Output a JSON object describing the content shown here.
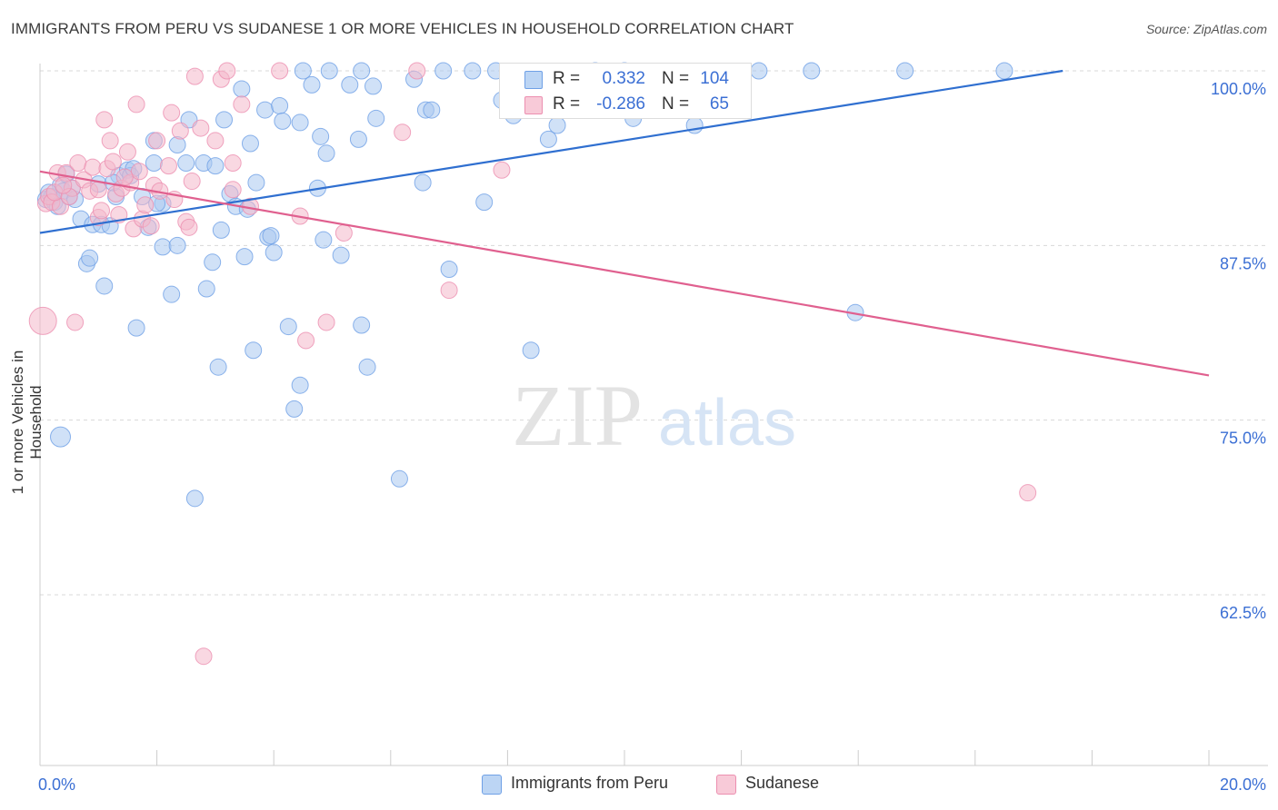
{
  "title": "IMMIGRANTS FROM PERU VS SUDANESE 1 OR MORE VEHICLES IN HOUSEHOLD CORRELATION CHART",
  "source": "Source: ZipAtlas.com",
  "watermark": {
    "zip": "ZIP",
    "atlas": "atlas"
  },
  "legend": {
    "r_label": "R =",
    "n_label": "N =",
    "rows": [
      {
        "r": "0.332",
        "n": "104",
        "color": "#a9c8f0"
      },
      {
        "r": "-0.286",
        "n": "65",
        "color": "#f4b8cb"
      }
    ]
  },
  "colors": {
    "peru": "#6fa0e6",
    "peru_fill": "#a9c8f0",
    "peru_line": "#2f6fd0",
    "sudanese": "#ec8fb0",
    "sudanese_fill": "#f4b8cb",
    "sudanese_line": "#e0608f",
    "tick_text": "#3b6fd4"
  },
  "chart_data": {
    "type": "scatter",
    "title": "IMMIGRANTS FROM PERU VS SUDANESE 1 OR MORE VEHICLES IN HOUSEHOLD CORRELATION CHART",
    "xlabel": "",
    "ylabel": "1 or more Vehicles in Household",
    "xlim": [
      0,
      20
    ],
    "ylim": [
      50,
      101
    ],
    "x_tick_labels": [
      {
        "x": 0,
        "label": "0.0%"
      },
      {
        "x": 20,
        "label": "20.0%"
      }
    ],
    "y_ticks": [
      {
        "y": 100,
        "label": "100.0%"
      },
      {
        "y": 87.5,
        "label": "87.5%"
      },
      {
        "y": 75,
        "label": "75.0%"
      },
      {
        "y": 62.5,
        "label": "62.5%"
      }
    ],
    "grid": "horizontal dashed",
    "legend_position": "top-center",
    "series": [
      {
        "name": "Immigrants from Peru",
        "trend": {
          "x0": 0,
          "y0": 88.4,
          "x1": 17.5,
          "y1": 100.0
        },
        "points": [
          [
            0.1,
            90.8
          ],
          [
            0.2,
            91.0
          ],
          [
            0.25,
            90.6
          ],
          [
            0.3,
            90.3
          ],
          [
            0.35,
            91.8
          ],
          [
            0.4,
            91.4
          ],
          [
            0.45,
            92.6
          ],
          [
            0.5,
            91.0
          ],
          [
            0.6,
            90.8
          ],
          [
            0.7,
            89.4
          ],
          [
            0.8,
            86.2
          ],
          [
            0.85,
            86.6
          ],
          [
            0.9,
            89.0
          ],
          [
            1.0,
            91.9
          ],
          [
            1.05,
            89.0
          ],
          [
            1.1,
            84.6
          ],
          [
            1.2,
            88.9
          ],
          [
            1.3,
            91.0
          ],
          [
            1.35,
            92.5
          ],
          [
            1.5,
            92.9
          ],
          [
            1.55,
            92.5
          ],
          [
            1.6,
            93.0
          ],
          [
            1.65,
            81.6
          ],
          [
            1.75,
            91.0
          ],
          [
            1.85,
            88.8
          ],
          [
            1.95,
            95.0
          ],
          [
            1.95,
            93.4
          ],
          [
            2.1,
            87.4
          ],
          [
            2.1,
            90.5
          ],
          [
            2.25,
            84.0
          ],
          [
            2.35,
            87.5
          ],
          [
            2.35,
            94.7
          ],
          [
            2.5,
            93.4
          ],
          [
            2.55,
            96.5
          ],
          [
            2.65,
            69.4
          ],
          [
            2.8,
            93.4
          ],
          [
            2.85,
            84.4
          ],
          [
            2.95,
            86.3
          ],
          [
            3.0,
            93.2
          ],
          [
            3.05,
            78.8
          ],
          [
            3.1,
            88.6
          ],
          [
            3.15,
            96.5
          ],
          [
            3.25,
            91.2
          ],
          [
            3.35,
            90.3
          ],
          [
            3.45,
            98.7
          ],
          [
            3.5,
            86.7
          ],
          [
            3.6,
            94.8
          ],
          [
            3.65,
            80.0
          ],
          [
            3.7,
            92.0
          ],
          [
            3.85,
            97.2
          ],
          [
            3.9,
            88.1
          ],
          [
            3.95,
            88.2
          ],
          [
            4.0,
            87.0
          ],
          [
            4.1,
            97.5
          ],
          [
            4.15,
            96.4
          ],
          [
            4.25,
            81.7
          ],
          [
            4.35,
            75.8
          ],
          [
            4.45,
            77.5
          ],
          [
            4.45,
            96.3
          ],
          [
            4.5,
            100.0
          ],
          [
            4.65,
            99.0
          ],
          [
            4.75,
            91.6
          ],
          [
            4.8,
            95.3
          ],
          [
            4.85,
            87.9
          ],
          [
            4.9,
            94.1
          ],
          [
            4.95,
            100.0
          ],
          [
            5.15,
            86.8
          ],
          [
            5.3,
            99.0
          ],
          [
            5.45,
            95.1
          ],
          [
            5.5,
            100.0
          ],
          [
            5.5,
            81.8
          ],
          [
            5.6,
            78.8
          ],
          [
            5.7,
            98.9
          ],
          [
            5.75,
            96.6
          ],
          [
            6.15,
            70.8
          ],
          [
            6.4,
            99.4
          ],
          [
            6.55,
            92.0
          ],
          [
            6.6,
            97.2
          ],
          [
            6.7,
            97.2
          ],
          [
            6.9,
            100.0
          ],
          [
            7.0,
            85.8
          ],
          [
            7.4,
            100.0
          ],
          [
            7.6,
            90.6
          ],
          [
            7.8,
            100.0
          ],
          [
            7.9,
            97.9
          ],
          [
            8.1,
            96.8
          ],
          [
            8.4,
            80.0
          ],
          [
            8.7,
            95.1
          ],
          [
            8.85,
            96.1
          ],
          [
            9.5,
            100.0
          ],
          [
            10.0,
            100.0
          ],
          [
            10.15,
            96.6
          ],
          [
            11.2,
            96.1
          ],
          [
            12.3,
            100.0
          ],
          [
            13.2,
            100.0
          ],
          [
            13.95,
            82.7
          ],
          [
            14.8,
            100.0
          ],
          [
            16.5,
            100.0
          ],
          [
            0.35,
            73.8
          ],
          [
            2.0,
            90.5
          ],
          [
            3.55,
            90.1
          ],
          [
            1.25,
            92.0
          ],
          [
            0.15,
            91.3
          ],
          [
            0.55,
            91.6
          ]
        ]
      },
      {
        "name": "Sudanese",
        "trend": {
          "x0": 0,
          "y0": 92.8,
          "x1": 20,
          "y1": 78.2
        },
        "points": [
          [
            0.05,
            82.1
          ],
          [
            0.1,
            90.5
          ],
          [
            0.15,
            91.0
          ],
          [
            0.2,
            90.6
          ],
          [
            0.3,
            92.7
          ],
          [
            0.35,
            90.3
          ],
          [
            0.45,
            92.7
          ],
          [
            0.55,
            91.6
          ],
          [
            0.6,
            82.0
          ],
          [
            0.65,
            93.4
          ],
          [
            0.75,
            92.2
          ],
          [
            0.85,
            91.4
          ],
          [
            0.9,
            93.1
          ],
          [
            1.0,
            89.5
          ],
          [
            1.0,
            91.5
          ],
          [
            1.1,
            96.5
          ],
          [
            1.15,
            93.0
          ],
          [
            1.2,
            95.0
          ],
          [
            1.25,
            93.5
          ],
          [
            1.3,
            91.2
          ],
          [
            1.35,
            89.7
          ],
          [
            1.4,
            91.6
          ],
          [
            1.5,
            94.2
          ],
          [
            1.55,
            92.0
          ],
          [
            1.6,
            88.7
          ],
          [
            1.65,
            97.6
          ],
          [
            1.7,
            92.8
          ],
          [
            1.75,
            89.4
          ],
          [
            1.8,
            90.4
          ],
          [
            1.9,
            88.9
          ],
          [
            1.95,
            91.8
          ],
          [
            2.0,
            95.0
          ],
          [
            2.05,
            91.4
          ],
          [
            2.2,
            93.2
          ],
          [
            2.25,
            97.0
          ],
          [
            2.4,
            95.7
          ],
          [
            2.5,
            89.2
          ],
          [
            2.55,
            88.8
          ],
          [
            2.65,
            99.6
          ],
          [
            2.75,
            95.9
          ],
          [
            2.8,
            58.1
          ],
          [
            3.0,
            95.0
          ],
          [
            3.1,
            99.4
          ],
          [
            3.2,
            100.0
          ],
          [
            3.3,
            93.4
          ],
          [
            3.45,
            97.6
          ],
          [
            3.6,
            90.3
          ],
          [
            4.1,
            100.0
          ],
          [
            4.45,
            89.6
          ],
          [
            4.55,
            80.7
          ],
          [
            4.9,
            82.0
          ],
          [
            5.2,
            88.4
          ],
          [
            6.2,
            95.6
          ],
          [
            6.45,
            100.0
          ],
          [
            7.0,
            84.3
          ],
          [
            7.9,
            92.9
          ],
          [
            16.9,
            69.8
          ],
          [
            0.25,
            91.3
          ],
          [
            0.5,
            91.0
          ],
          [
            1.45,
            92.4
          ],
          [
            2.3,
            90.8
          ],
          [
            0.4,
            91.8
          ],
          [
            1.05,
            90.0
          ],
          [
            2.6,
            92.1
          ],
          [
            3.3,
            91.5
          ]
        ]
      }
    ]
  },
  "bottom_legend": [
    "Immigrants from Peru",
    "Sudanese"
  ]
}
